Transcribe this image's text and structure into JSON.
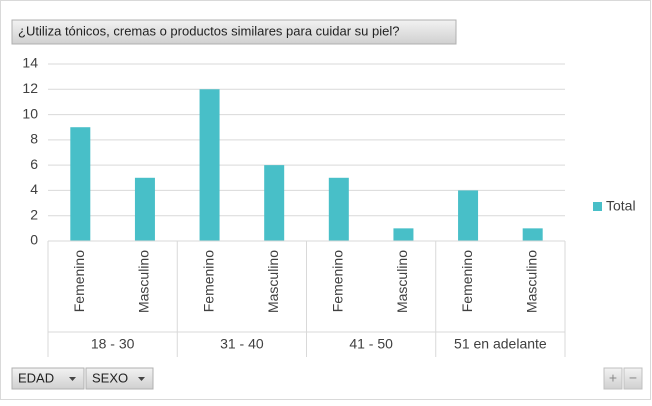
{
  "chart_data": {
    "type": "bar",
    "title": "¿Utiliza tónicos, cremas o productos similares para cuidar su piel?",
    "groups": [
      {
        "name": "18 - 30",
        "categories": [
          "Femenino",
          "Masculino"
        ]
      },
      {
        "name": "31 - 40",
        "categories": [
          "Femenino",
          "Masculino"
        ]
      },
      {
        "name": "41 - 50",
        "categories": [
          "Femenino",
          "Masculino"
        ]
      },
      {
        "name": "51 en adelante",
        "categories": [
          "Femenino",
          "Masculino"
        ]
      }
    ],
    "series": [
      {
        "name": "Total",
        "color": "#48bfc8",
        "values": [
          9,
          5,
          12,
          6,
          5,
          1,
          4,
          1
        ]
      }
    ],
    "ylim": [
      0,
      14
    ],
    "yticks": [
      0,
      2,
      4,
      6,
      8,
      10,
      12,
      14
    ],
    "grid": true,
    "legend": "right",
    "fields": [
      "EDAD",
      "SEXO"
    ],
    "zoom": [
      "+",
      "−"
    ]
  }
}
